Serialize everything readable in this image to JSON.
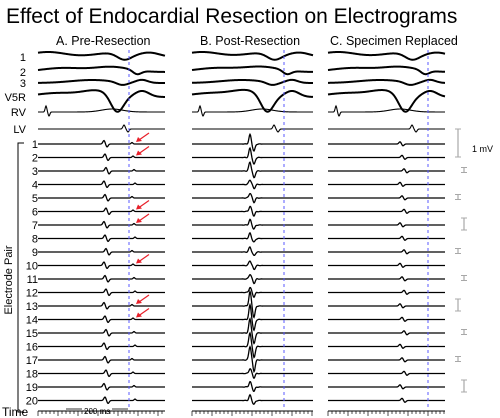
{
  "title": "Effect of Endocardial Resection on Electrograms",
  "panels": [
    {
      "label": "A. Pre-Resection"
    },
    {
      "label": "B. Post-Resection"
    },
    {
      "label": "C. Specimen Replaced"
    }
  ],
  "surface_leads": [
    "1",
    "2",
    "3",
    "V5R",
    "RV",
    "LV"
  ],
  "electrode_pairs": [
    "1",
    "2",
    "3",
    "4",
    "5",
    "6",
    "7",
    "8",
    "9",
    "10",
    "11",
    "12",
    "13",
    "14",
    "15",
    "16",
    "17",
    "18",
    "19",
    "20"
  ],
  "y_axis_label": "Electrode Pair",
  "time_label": "Time",
  "scale_time_label": "200 ms",
  "scale_voltage_label": "1 mV",
  "colors": {
    "trace": "#000000",
    "reference_line": "#5a5aff",
    "arrow": "#e8202a",
    "scale_bar": "#a8a8a8"
  },
  "pre_resection_arrows_at_pairs": [
    "1",
    "2",
    "6",
    "7",
    "10",
    "13",
    "14"
  ]
}
